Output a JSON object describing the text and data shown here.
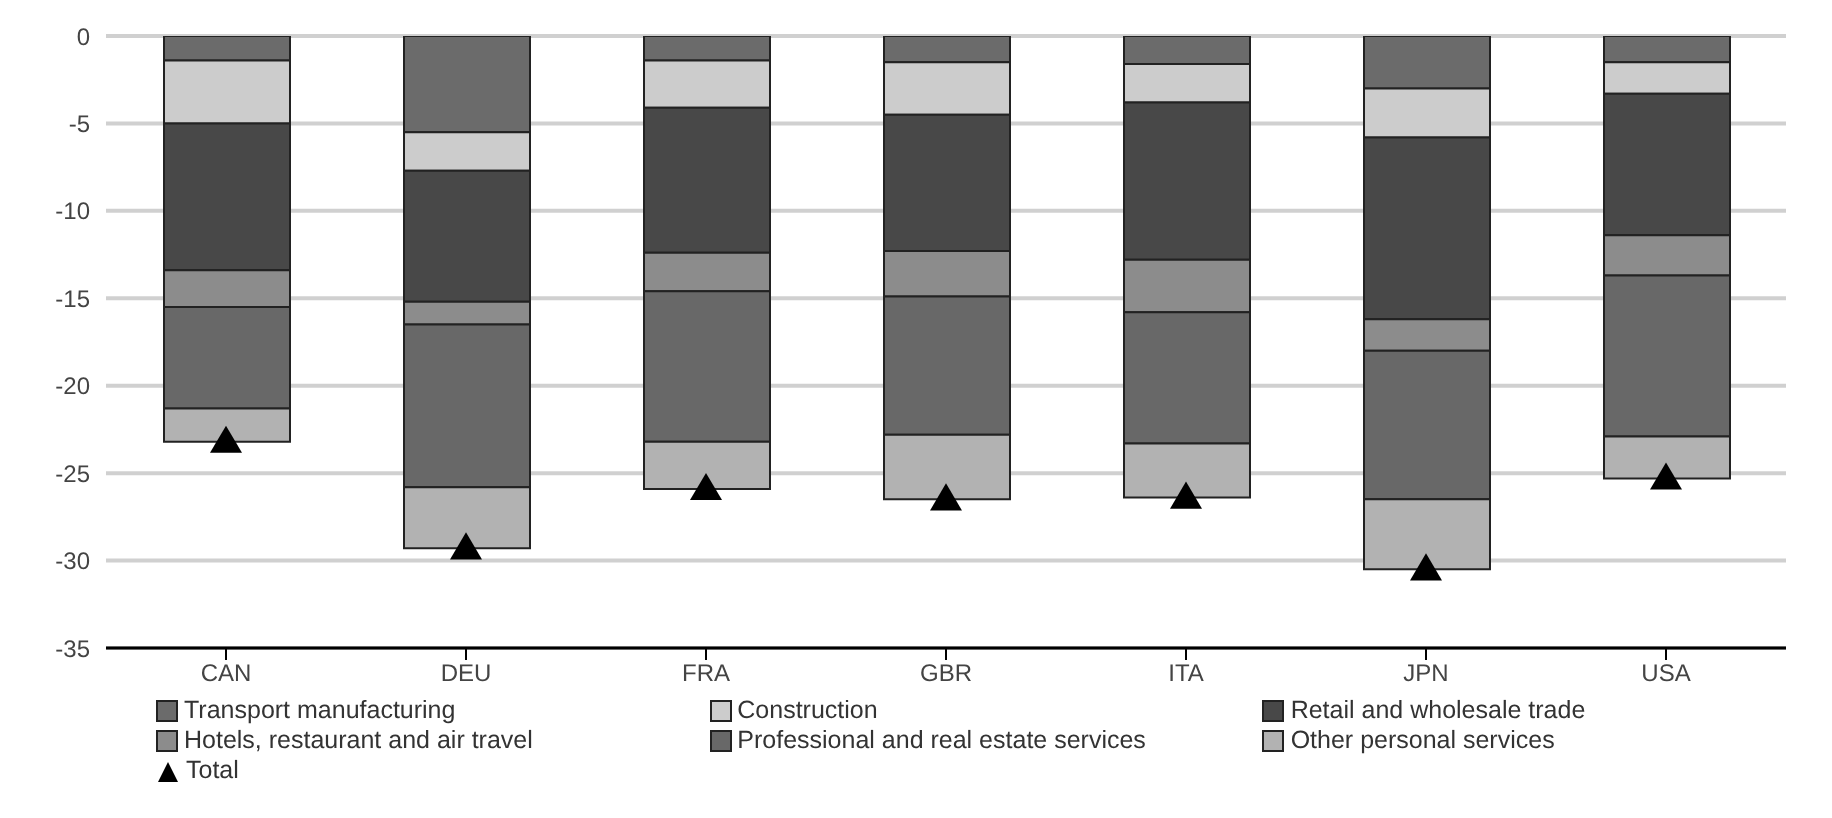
{
  "chart_data": {
    "type": "bar",
    "stacked": true,
    "categories": [
      "CAN",
      "DEU",
      "FRA",
      "GBR",
      "ITA",
      "JPN",
      "USA"
    ],
    "series": [
      {
        "name": "Transport manufacturing",
        "color": "#6b6b6b",
        "values": [
          -1.4,
          -5.5,
          -1.4,
          -1.5,
          -1.6,
          -3.0,
          -1.5
        ]
      },
      {
        "name": "Construction",
        "color": "#cccccc",
        "values": [
          -3.6,
          -2.2,
          -2.7,
          -3.0,
          -2.2,
          -2.8,
          -1.8
        ]
      },
      {
        "name": "Retail and wholesale trade",
        "color": "#484848",
        "values": [
          -8.4,
          -7.5,
          -8.3,
          -7.8,
          -9.0,
          -10.4,
          -8.1
        ]
      },
      {
        "name": "Hotels, restaurant and air travel",
        "color": "#8c8c8c",
        "values": [
          -2.1,
          -1.3,
          -2.2,
          -2.6,
          -3.0,
          -1.8,
          -2.3
        ]
      },
      {
        "name": "Professional and real estate services",
        "color": "#686868",
        "values": [
          -5.8,
          -9.3,
          -8.6,
          -7.9,
          -7.5,
          -8.5,
          -9.2
        ]
      },
      {
        "name": "Other personal services",
        "color": "#b2b2b2",
        "values": [
          -1.9,
          -3.5,
          -2.7,
          -3.7,
          -3.1,
          -4.0,
          -2.4
        ]
      },
      {
        "name": "Total",
        "type": "scatter",
        "marker": "triangle",
        "color": "#000000",
        "values": [
          -23.2,
          -29.3,
          -25.9,
          -26.5,
          -26.4,
          -30.5,
          -25.3
        ]
      }
    ],
    "ylim": [
      -35,
      0
    ],
    "yticks": [
      0,
      -5,
      -10,
      -15,
      -20,
      -25,
      -30,
      -35
    ],
    "grid": "y",
    "legend": "bottom"
  }
}
